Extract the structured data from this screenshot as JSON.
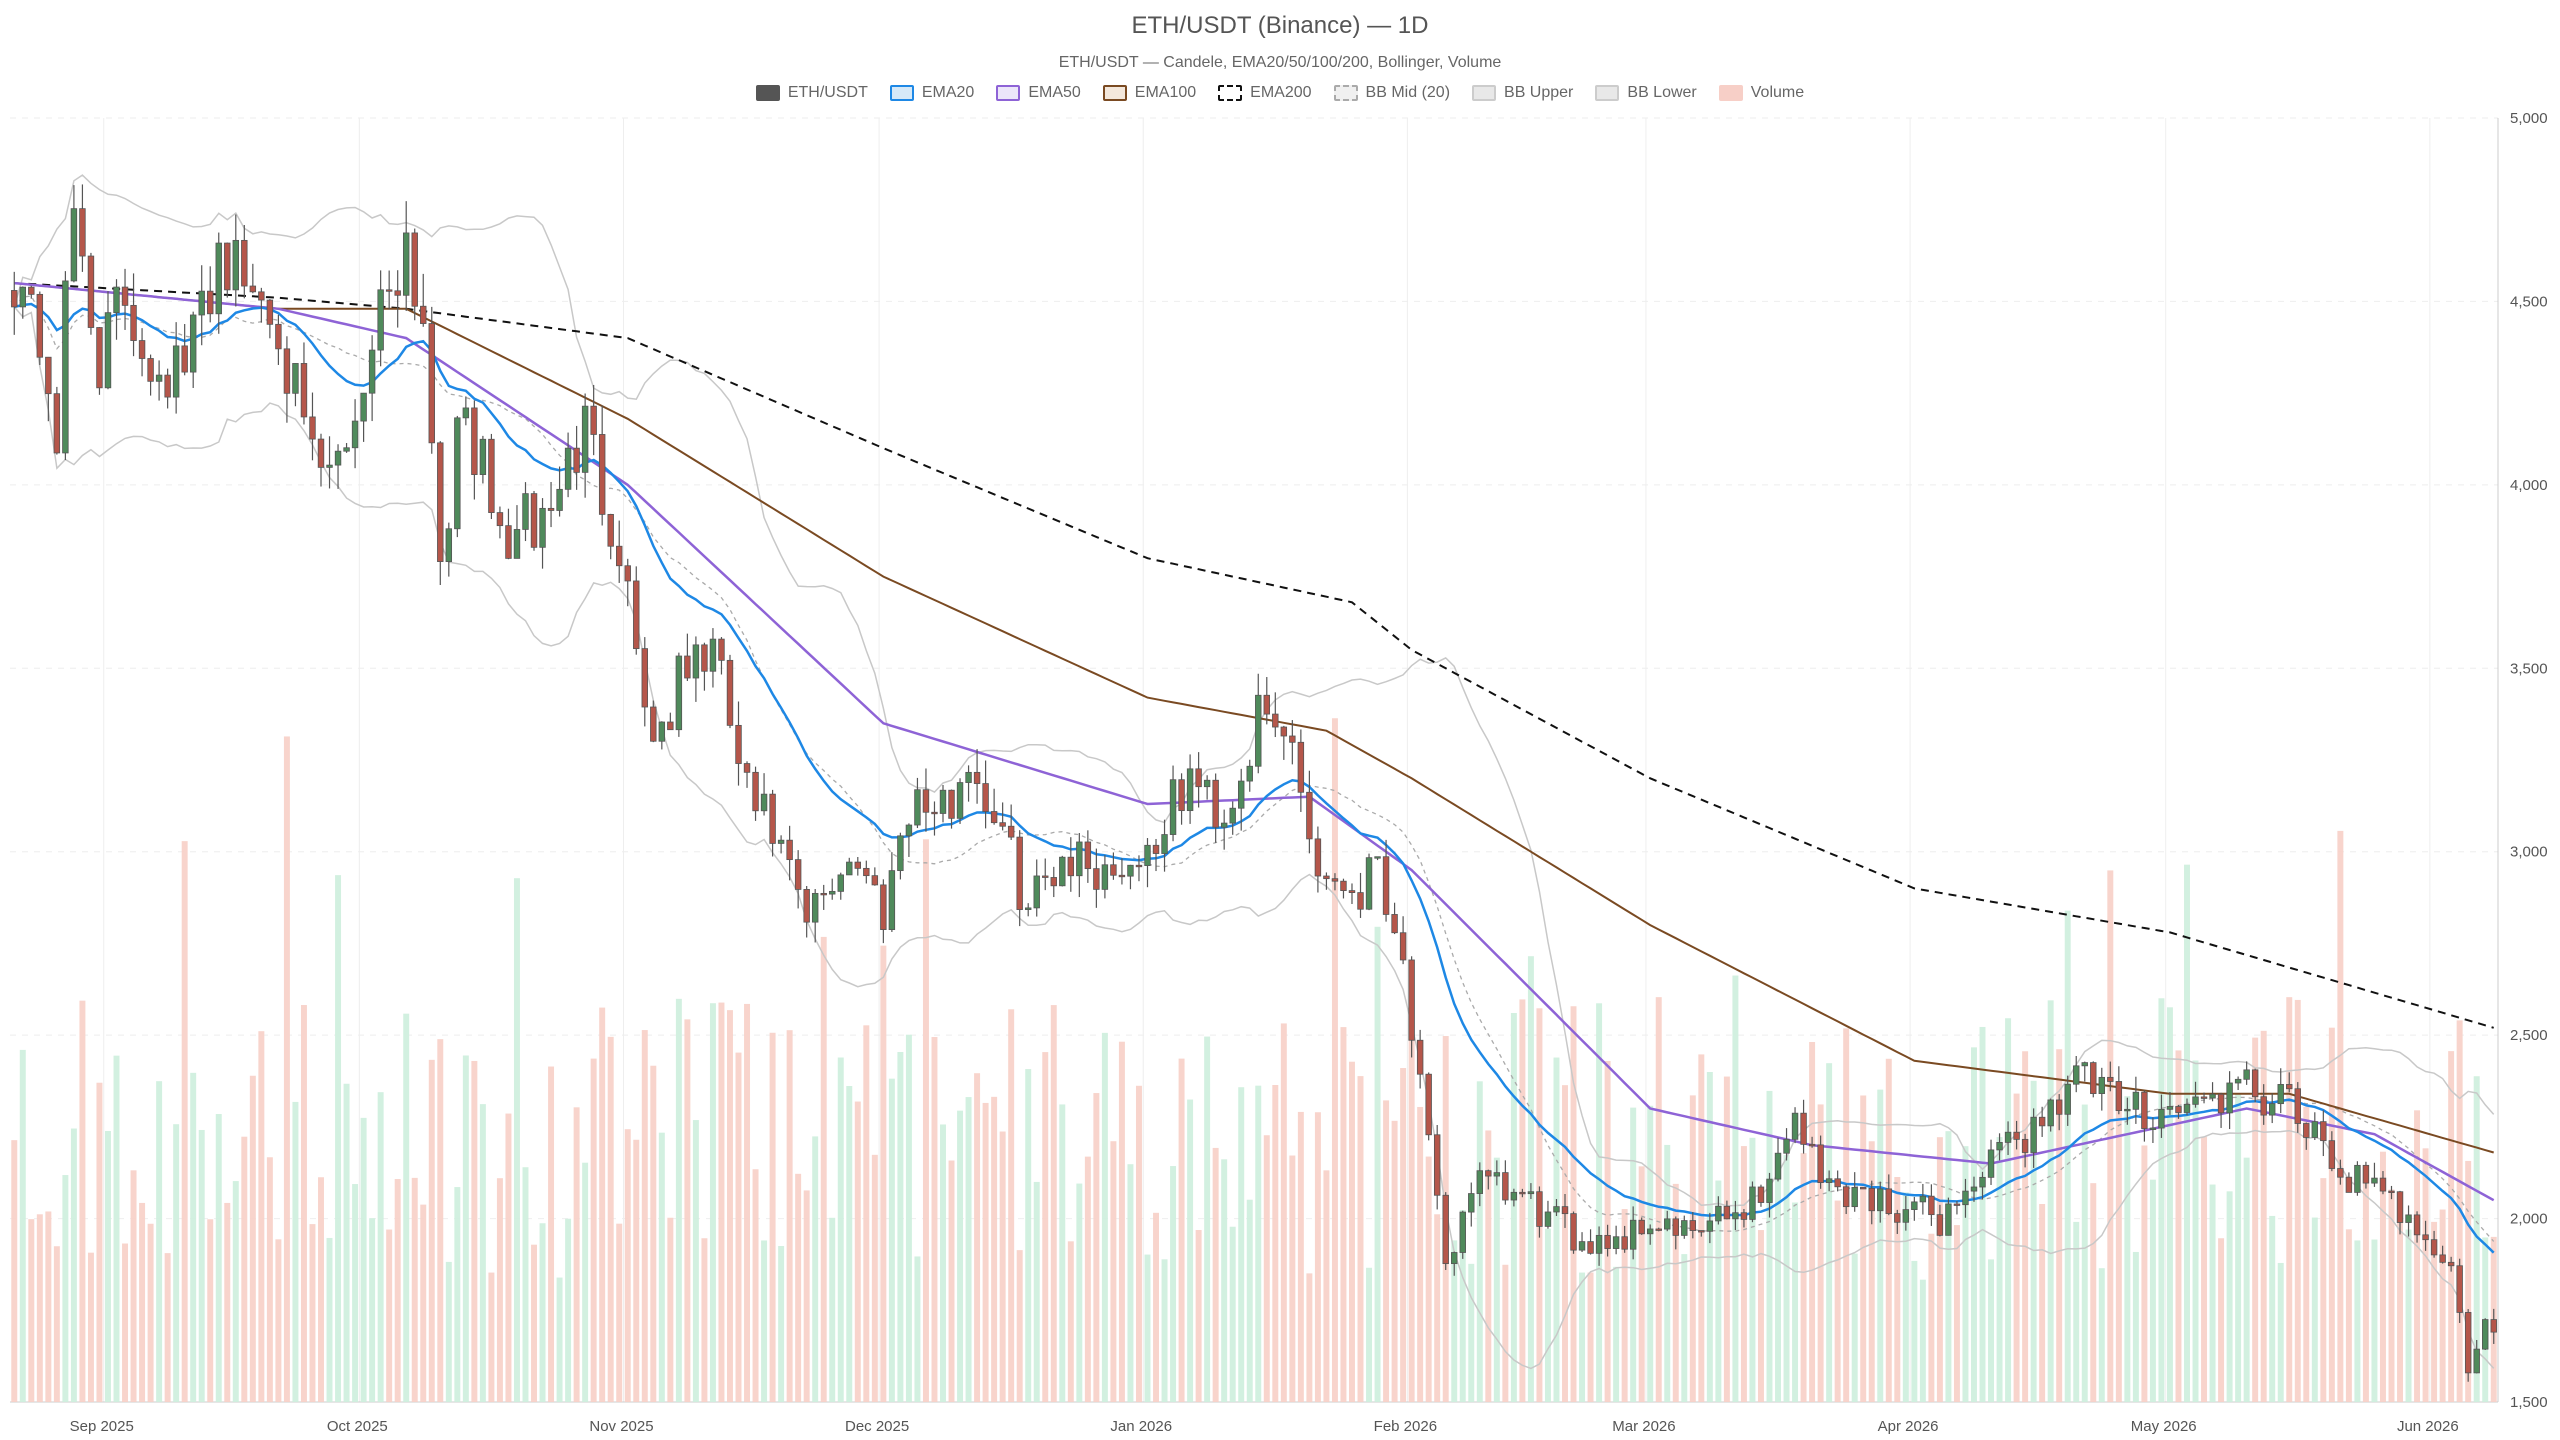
{
  "title": "ETH/USDT (Binance) — 1D",
  "subtitle": "ETH/USDT — Candele, EMA20/50/100/200, Bollinger, Volume",
  "legend": [
    {
      "label": "ETH/USDT",
      "fill": "#555555",
      "stroke": "#555555",
      "dash": false
    },
    {
      "label": "EMA20",
      "fill": "#d6e9f8",
      "stroke": "#1e88e5",
      "dash": false
    },
    {
      "label": "EMA50",
      "fill": "#ece6fa",
      "stroke": "#8e63d6",
      "dash": false
    },
    {
      "label": "EMA100",
      "fill": "#f4e8dc",
      "stroke": "#7a4a22",
      "dash": false
    },
    {
      "label": "EMA200",
      "fill": "#ffffff",
      "stroke": "#111111",
      "dash": true
    },
    {
      "label": "BB Mid (20)",
      "fill": "#f0f0f0",
      "stroke": "#aaaaaa",
      "dash": true
    },
    {
      "label": "BB Upper",
      "fill": "#e8e8e8",
      "stroke": "#cccccc",
      "dash": false
    },
    {
      "label": "BB Lower",
      "fill": "#e8e8e8",
      "stroke": "#cccccc",
      "dash": false
    },
    {
      "label": "Volume",
      "fill": "#f7cfc7",
      "stroke": "#f7cfc7",
      "dash": false
    }
  ],
  "colors": {
    "up": "#4f8a5b",
    "down": "#b5564a",
    "wick": "#555555",
    "volume_up": "#cdeedd",
    "volume_down": "#f7cfc7",
    "ema20": "#1e88e5",
    "ema50": "#8e63d6",
    "ema100": "#7a4a22",
    "ema200": "#111111",
    "bb": "#c8c8c8",
    "grid": "#eeeeee"
  },
  "chart_data": {
    "type": "candlestick",
    "title": "ETH/USDT (Binance) — 1D",
    "subtitle": "ETH/USDT — Candele, EMA20/50/100/200, Bollinger, Volume",
    "ylim": [
      1500,
      5000
    ],
    "y_ticks": [
      1500,
      2000,
      2500,
      3000,
      3500,
      4000,
      4500,
      5000
    ],
    "y_tick_labels": [
      "1,500",
      "2,000",
      "2,500",
      "3,000",
      "3,500",
      "4,000",
      "4,500",
      "5,000"
    ],
    "x_tick_labels": [
      "Sep 2025",
      "Oct 2025",
      "Nov 2025",
      "Dec 2025",
      "Jan 2026",
      "Feb 2026",
      "Mar 2026",
      "Apr 2026",
      "May 2026",
      "Jun 2026"
    ],
    "x_range": [
      "2025-08-21",
      "2026-06-08"
    ],
    "grid": true,
    "legend_position": "top-center",
    "price_anchors": [
      [
        "2025-08-21",
        4600
      ],
      [
        "2025-08-24",
        4400
      ],
      [
        "2025-08-26",
        4150
      ],
      [
        "2025-08-28",
        4750
      ],
      [
        "2025-08-31",
        4350
      ],
      [
        "2025-09-03",
        4500
      ],
      [
        "2025-09-06",
        4350
      ],
      [
        "2025-09-10",
        4300
      ],
      [
        "2025-09-14",
        4650
      ],
      [
        "2025-09-17",
        4550
      ],
      [
        "2025-09-21",
        4480
      ],
      [
        "2025-09-24",
        4100
      ],
      [
        "2025-09-27",
        4000
      ],
      [
        "2025-09-30",
        4200
      ],
      [
        "2025-10-03",
        4500
      ],
      [
        "2025-10-06",
        4680
      ],
      [
        "2025-10-08",
        4450
      ],
      [
        "2025-10-10",
        3850
      ],
      [
        "2025-10-13",
        4200
      ],
      [
        "2025-10-17",
        3850
      ],
      [
        "2025-10-22",
        3900
      ],
      [
        "2025-10-27",
        4150
      ],
      [
        "2025-10-31",
        3850
      ],
      [
        "2025-11-04",
        3300
      ],
      [
        "2025-11-08",
        3500
      ],
      [
        "2025-11-11",
        3550
      ],
      [
        "2025-11-15",
        3150
      ],
      [
        "2025-11-18",
        3050
      ],
      [
        "2025-11-22",
        2800
      ],
      [
        "2025-11-27",
        3000
      ],
      [
        "2025-12-01",
        2850
      ],
      [
        "2025-12-04",
        3150
      ],
      [
        "2025-12-08",
        3100
      ],
      [
        "2025-12-11",
        3250
      ],
      [
        "2025-12-14",
        3100
      ],
      [
        "2025-12-18",
        2850
      ],
      [
        "2025-12-22",
        3000
      ],
      [
        "2025-12-27",
        2950
      ],
      [
        "2026-01-01",
        3000
      ],
      [
        "2026-01-06",
        3200
      ],
      [
        "2026-01-10",
        3100
      ],
      [
        "2026-01-14",
        3350
      ],
      [
        "2026-01-18",
        3300
      ],
      [
        "2026-01-21",
        2950
      ],
      [
        "2026-01-26",
        2900
      ],
      [
        "2026-01-28",
        3000
      ],
      [
        "2026-01-31",
        2700
      ],
      [
        "2026-02-02",
        2350
      ],
      [
        "2026-02-05",
        1850
      ],
      [
        "2026-02-08",
        2100
      ],
      [
        "2026-02-14",
        2050
      ],
      [
        "2026-02-20",
        1950
      ],
      [
        "2026-02-26",
        1950
      ],
      [
        "2026-03-01",
        2000
      ],
      [
        "2026-03-05",
        1950
      ],
      [
        "2026-03-10",
        2000
      ],
      [
        "2026-03-15",
        2100
      ],
      [
        "2026-03-18",
        2300
      ],
      [
        "2026-03-21",
        2100
      ],
      [
        "2026-03-28",
        2050
      ],
      [
        "2026-04-04",
        2000
      ],
      [
        "2026-04-10",
        2150
      ],
      [
        "2026-04-15",
        2250
      ],
      [
        "2026-04-20",
        2400
      ],
      [
        "2026-04-25",
        2300
      ],
      [
        "2026-05-02",
        2300
      ],
      [
        "2026-05-10",
        2350
      ],
      [
        "2026-05-15",
        2300
      ],
      [
        "2026-05-20",
        2150
      ],
      [
        "2026-05-26",
        2050
      ],
      [
        "2026-05-30",
        2000
      ],
      [
        "2026-06-03",
        1850
      ],
      [
        "2026-06-05",
        1600
      ],
      [
        "2026-06-07",
        1700
      ],
      [
        "2026-06-08",
        1680
      ]
    ],
    "ema200_anchors": [
      [
        "2025-08-21",
        4550
      ],
      [
        "2025-09-21",
        4510
      ],
      [
        "2025-10-06",
        4480
      ],
      [
        "2025-11-01",
        4400
      ],
      [
        "2025-12-01",
        4100
      ],
      [
        "2026-01-01",
        3800
      ],
      [
        "2026-01-25",
        3680
      ],
      [
        "2026-02-01",
        3550
      ],
      [
        "2026-03-01",
        3200
      ],
      [
        "2026-04-01",
        2900
      ],
      [
        "2026-05-01",
        2780
      ],
      [
        "2026-06-08",
        2520
      ]
    ],
    "ema100_anchors": [
      [
        "2025-08-21",
        4550
      ],
      [
        "2025-09-21",
        4480
      ],
      [
        "2025-10-06",
        4480
      ],
      [
        "2025-11-01",
        4180
      ],
      [
        "2025-12-01",
        3750
      ],
      [
        "2026-01-01",
        3420
      ],
      [
        "2026-01-22",
        3330
      ],
      [
        "2026-02-01",
        3200
      ],
      [
        "2026-03-01",
        2800
      ],
      [
        "2026-04-01",
        2430
      ],
      [
        "2026-05-01",
        2340
      ],
      [
        "2026-05-15",
        2340
      ],
      [
        "2026-06-08",
        2180
      ]
    ],
    "ema50_anchors": [
      [
        "2025-08-21",
        4550
      ],
      [
        "2025-09-21",
        4480
      ],
      [
        "2025-10-06",
        4400
      ],
      [
        "2025-11-01",
        4000
      ],
      [
        "2025-12-01",
        3350
      ],
      [
        "2026-01-01",
        3130
      ],
      [
        "2026-01-20",
        3150
      ],
      [
        "2026-02-01",
        2950
      ],
      [
        "2026-03-01",
        2300
      ],
      [
        "2026-03-20",
        2200
      ],
      [
        "2026-04-10",
        2150
      ],
      [
        "2026-05-10",
        2300
      ],
      [
        "2026-05-25",
        2230
      ],
      [
        "2026-06-08",
        2050
      ]
    ]
  }
}
